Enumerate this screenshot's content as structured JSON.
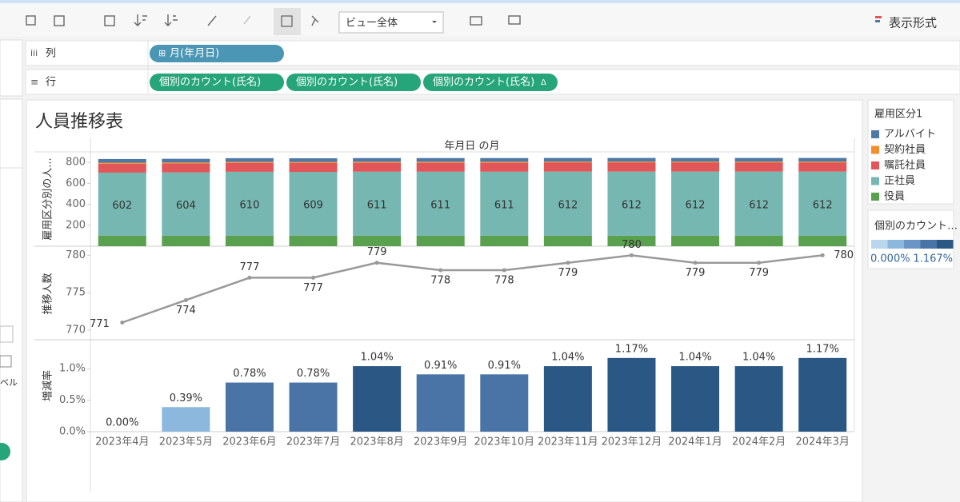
{
  "toolbar": {
    "view": "ビュー全体",
    "format": "表示形式"
  },
  "shelves": {
    "columns": {
      "label": "列",
      "pills": [
        "月(年月日)"
      ]
    },
    "rows": {
      "label": "行",
      "pills": [
        "個別のカウント(氏名)",
        "個別のカウント(氏名)",
        "個別のカウント(氏名)"
      ]
    }
  },
  "sidebar": {
    "fragment": "ベル"
  },
  "title": "人員推移表",
  "column_header": "年月日 の月",
  "chart_data": [
    {
      "type": "stacked_bar",
      "ylabel": "雇用区分別の人...",
      "legend_title": "雇用区分1",
      "ylim": [
        0,
        900
      ],
      "yticks": [
        200,
        400,
        600,
        800
      ],
      "series": [
        {
          "name": "アルバイト",
          "color": "#4e79a7",
          "values": [
            35,
            35,
            35,
            35,
            35,
            35,
            35,
            35,
            35,
            35,
            35,
            35
          ]
        },
        {
          "name": "契約社員",
          "color": "#f28e2b",
          "values": [
            10,
            10,
            10,
            10,
            10,
            10,
            10,
            10,
            10,
            10,
            10,
            10
          ]
        },
        {
          "name": "嘱託社員",
          "color": "#e15759",
          "values": [
            85,
            85,
            85,
            85,
            85,
            85,
            85,
            85,
            85,
            85,
            85,
            85
          ]
        },
        {
          "name": "正社員",
          "color": "#76b7b2",
          "values": [
            602,
            604,
            610,
            609,
            611,
            611,
            611,
            612,
            612,
            612,
            612,
            612
          ]
        },
        {
          "name": "役員",
          "color": "#59a14f",
          "values": [
            100,
            100,
            100,
            100,
            100,
            100,
            100,
            100,
            100,
            100,
            100,
            100
          ]
        }
      ]
    },
    {
      "type": "line",
      "ylabel": "推移人数",
      "color": "#999999",
      "ylim": [
        768.7,
        781
      ],
      "yticks": [
        770,
        775,
        780
      ],
      "values": [
        771,
        774,
        777,
        777,
        779,
        778,
        778,
        779,
        780,
        779,
        779,
        780
      ]
    },
    {
      "type": "bar",
      "ylabel": "増減率",
      "categories": [
        "2023年4月",
        "2023年5月",
        "2023年6月",
        "2023年7月",
        "2023年8月",
        "2023年9月",
        "2023年10月",
        "2023年11月",
        "2023年12月",
        "2024年1月",
        "2024年2月",
        "2024年3月"
      ],
      "values": [
        0,
        0.39,
        0.78,
        0.78,
        1.04,
        0.91,
        0.91,
        1.04,
        1.17,
        1.04,
        1.04,
        1.17
      ],
      "value_labels": [
        "0.00%",
        "0.39%",
        "0.78%",
        "0.78%",
        "1.04%",
        "0.91%",
        "0.91%",
        "1.04%",
        "1.17%",
        "1.04%",
        "1.04%",
        "1.17%"
      ],
      "ylim": [
        0,
        1.46
      ],
      "yticks": [
        {
          "value": 0,
          "label": "0.0%"
        },
        {
          "value": 0.5,
          "label": "0.5%"
        },
        {
          "value": 1,
          "label": "1.0%"
        }
      ],
      "color_legend": {
        "title": "個別のカウント…",
        "min": {
          "value": 0,
          "label": "0.000%"
        },
        "max": {
          "value": 1.167,
          "label": "1.167%"
        },
        "colors": [
          "#b9d6ec",
          "#8cb8de",
          "#6a95c4",
          "#4a74a6",
          "#2a5783"
        ]
      }
    }
  ]
}
